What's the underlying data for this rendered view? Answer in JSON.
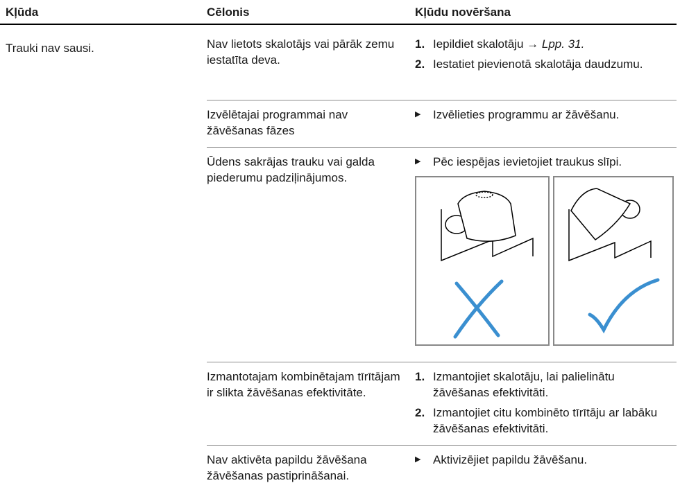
{
  "header": {
    "columns": [
      "Kļūda",
      "Cēlonis",
      "Kļūdu novēršana"
    ]
  },
  "fault": "Trauki nav sausi.",
  "rows": [
    {
      "cause": "Nav lietots skalotājs vai pārāk zemu iestatīta deva.",
      "steps": [
        {
          "num": "1.",
          "text": "Iepildiet skalotāju →",
          "ref": "Lpp. 31."
        },
        {
          "num": "2.",
          "text": "Iestatiet pievienotā skalotāja daudzumu."
        }
      ]
    },
    {
      "cause": "Izvēlētajai programmai nav žāvēšanas fāzes",
      "bullet": "Izvēlieties programmu ar žāvēšanu."
    },
    {
      "cause": "Ūdens sakrājas trauku vai galda piederumu padziļinājumos.",
      "bullet": "Pēc iespējas ievietojiet traukus slīpi."
    },
    {
      "cause": "Izmantotajam kombinētajam tīrītājam ir slikta žāvēšanas efektivitāte.",
      "steps": [
        {
          "num": "1.",
          "text": "Izmantojiet skalotāju, lai palielinātu žāvēšanas efektivitāti."
        },
        {
          "num": "2.",
          "text": "Izmantojiet citu kombinēto tīrītāju ar labāku žāvēšanas efektivitāti."
        }
      ]
    },
    {
      "cause": "Nav aktivēta papildu žāvēšana žāvēšanas pastiprināšanai.",
      "bullet": "Aktivizējiet papildu žāvēšanu."
    }
  ]
}
